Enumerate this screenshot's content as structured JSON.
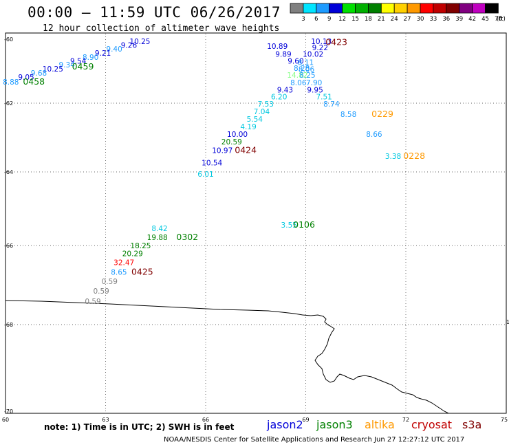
{
  "header": {
    "title": "00:00 — 11:59 UTC 06/26/2017",
    "subtitle": "12 hour collection of altimeter wave heights"
  },
  "scale": {
    "unit": "(ft)",
    "stops": [
      {
        "label": "3",
        "color": "#808080"
      },
      {
        "label": "6",
        "color": "#00e5ff"
      },
      {
        "label": "9",
        "color": "#1e9bff"
      },
      {
        "label": "12",
        "color": "#0000d8"
      },
      {
        "label": "15",
        "color": "#00e000"
      },
      {
        "label": "18",
        "color": "#00b000"
      },
      {
        "label": "21",
        "color": "#008000"
      },
      {
        "label": "24",
        "color": "#ffff00"
      },
      {
        "label": "27",
        "color": "#ffd000"
      },
      {
        "label": "30",
        "color": "#ff9900"
      },
      {
        "label": "33",
        "color": "#ff0000"
      },
      {
        "label": "36",
        "color": "#c00000"
      },
      {
        "label": "39",
        "color": "#800000"
      },
      {
        "label": "42",
        "color": "#800080"
      },
      {
        "label": "45",
        "color": "#c000c0"
      },
      {
        "label": "70",
        "color": "#000000"
      }
    ]
  },
  "axes": {
    "lat_labels": [
      "-60",
      "-62",
      "-64",
      "-66",
      "-68",
      "-70"
    ],
    "lon_labels": [
      "60",
      "63",
      "66",
      "69",
      "72",
      "75"
    ],
    "right_edge_label": "1"
  },
  "observations": [
    {
      "text": "10.13",
      "lon": 69.47,
      "lat": -60.06,
      "color": "#0000d8"
    },
    {
      "text": "10.89",
      "lon": 68.15,
      "lat": -60.21,
      "color": "#0000d8"
    },
    {
      "text": "9.22",
      "lon": 69.43,
      "lat": -60.26,
      "color": "#0000d8"
    },
    {
      "text": "9.89",
      "lon": 68.33,
      "lat": -60.46,
      "color": "#0000d8"
    },
    {
      "text": "10.02",
      "lon": 69.22,
      "lat": -60.46,
      "color": "#0000d8"
    },
    {
      "text": "9.60",
      "lon": 68.7,
      "lat": -60.68,
      "color": "#0000d8"
    },
    {
      "text": "8.11",
      "lon": 69.0,
      "lat": -60.72,
      "color": "#1e9bff"
    },
    {
      "text": "8.28",
      "lon": 68.88,
      "lat": -60.9,
      "color": "#1e9bff"
    },
    {
      "text": "8.06",
      "lon": 69.02,
      "lat": -60.94,
      "color": "#1e9bff"
    },
    {
      "text": "14.82",
      "lon": 68.75,
      "lat": -61.12,
      "color": "#88ff88"
    },
    {
      "text": "8.25",
      "lon": 69.05,
      "lat": -61.12,
      "color": "#1e9bff"
    },
    {
      "text": "8.06",
      "lon": 68.78,
      "lat": -61.35,
      "color": "#1e9bff"
    },
    {
      "text": "7.90",
      "lon": 69.25,
      "lat": -61.35,
      "color": "#1e9bff"
    },
    {
      "text": "9.43",
      "lon": 68.38,
      "lat": -61.58,
      "color": "#0000d8"
    },
    {
      "text": "9.95",
      "lon": 69.28,
      "lat": -61.58,
      "color": "#0000d8"
    },
    {
      "text": "6.20",
      "lon": 68.2,
      "lat": -61.8,
      "color": "#00c8e0"
    },
    {
      "text": "7.51",
      "lon": 69.55,
      "lat": -61.8,
      "color": "#00c8e0"
    },
    {
      "text": "7.53",
      "lon": 67.8,
      "lat": -62.02,
      "color": "#00c8e0"
    },
    {
      "text": "8.74",
      "lon": 69.77,
      "lat": -62.02,
      "color": "#1e9bff"
    },
    {
      "text": "7.04",
      "lon": 67.68,
      "lat": -62.24,
      "color": "#00c8e0"
    },
    {
      "text": "8.58",
      "lon": 70.28,
      "lat": -62.32,
      "color": "#1e9bff"
    },
    {
      "text": "5.54",
      "lon": 67.47,
      "lat": -62.46,
      "color": "#00c8e0"
    },
    {
      "text": "4.19",
      "lon": 67.28,
      "lat": -62.68,
      "color": "#00c8e0"
    },
    {
      "text": "10.00",
      "lon": 66.95,
      "lat": -62.9,
      "color": "#0000d8"
    },
    {
      "text": "8.66",
      "lon": 71.05,
      "lat": -62.9,
      "color": "#1e9bff"
    },
    {
      "text": "20.59",
      "lon": 66.78,
      "lat": -63.12,
      "color": "#008000"
    },
    {
      "text": "10.97",
      "lon": 66.5,
      "lat": -63.37,
      "color": "#0000d8"
    },
    {
      "text": "3.38",
      "lon": 71.62,
      "lat": -63.54,
      "color": "#00c8e0"
    },
    {
      "text": "10.54",
      "lon": 66.19,
      "lat": -63.73,
      "color": "#0000d8"
    },
    {
      "text": "6.01",
      "lon": 66.0,
      "lat": -64.06,
      "color": "#00c8e0"
    },
    {
      "text": "3.55",
      "lon": 68.5,
      "lat": -65.44,
      "color": "#00c8e0"
    },
    {
      "text": "8.42",
      "lon": 64.62,
      "lat": -65.53,
      "color": "#00c8e0"
    },
    {
      "text": "19.88",
      "lon": 64.55,
      "lat": -65.78,
      "color": "#008000"
    },
    {
      "text": "18.25",
      "lon": 64.05,
      "lat": -66.0,
      "color": "#008000"
    },
    {
      "text": "20.29",
      "lon": 63.81,
      "lat": -66.2,
      "color": "#008000"
    },
    {
      "text": "32.47",
      "lon": 63.55,
      "lat": -66.43,
      "color": "#ff0000"
    },
    {
      "text": "8.65",
      "lon": 63.4,
      "lat": -66.67,
      "color": "#1e9bff"
    },
    {
      "text": "0.59",
      "lon": 63.12,
      "lat": -66.9,
      "color": "#808080"
    },
    {
      "text": "0.59",
      "lon": 62.87,
      "lat": -67.15,
      "color": "#808080"
    },
    {
      "text": "0.59",
      "lon": 62.62,
      "lat": -67.41,
      "color": "#808080"
    }
  ],
  "pass_times": [
    {
      "text": "0423",
      "lon": 69.92,
      "lat": -60.1,
      "color": "#800000"
    },
    {
      "text": "0229",
      "lon": 71.3,
      "lat": -62.32,
      "color": "#ff9900"
    },
    {
      "text": "0424",
      "lon": 67.2,
      "lat": -63.37,
      "color": "#800000"
    },
    {
      "text": "0228",
      "lon": 72.25,
      "lat": -63.54,
      "color": "#ff9900"
    },
    {
      "text": "0106",
      "lon": 68.95,
      "lat": -65.44,
      "color": "#008000"
    },
    {
      "text": "0302",
      "lon": 65.45,
      "lat": -65.78,
      "color": "#008000"
    },
    {
      "text": "0425",
      "lon": 64.1,
      "lat": -66.67,
      "color": "#800000"
    },
    {
      "text": "0459",
      "lon": 62.32,
      "lat": -60.86,
      "color": "#008000"
    },
    {
      "text": "0458",
      "lon": 60.85,
      "lat": -61.33,
      "color": "#008000"
    }
  ],
  "clutter": [
    {
      "text": "10.25",
      "lon": 64.03,
      "lat": -60.06,
      "color": "#0000d8"
    },
    {
      "text": "9.26",
      "lon": 63.7,
      "lat": -60.18,
      "color": "#0000d8"
    },
    {
      "text": "9.40",
      "lon": 63.26,
      "lat": -60.3,
      "color": "#1e9bff"
    },
    {
      "text": "9.21",
      "lon": 62.92,
      "lat": -60.43,
      "color": "#0000d8"
    },
    {
      "text": "8.90",
      "lon": 62.55,
      "lat": -60.56,
      "color": "#1e9bff"
    },
    {
      "text": "9.54",
      "lon": 62.18,
      "lat": -60.68,
      "color": "#0000d8"
    },
    {
      "text": "9.34",
      "lon": 61.84,
      "lat": -60.8,
      "color": "#1e9bff"
    },
    {
      "text": "10.25",
      "lon": 61.42,
      "lat": -60.93,
      "color": "#0000d8"
    },
    {
      "text": "9.68",
      "lon": 61.0,
      "lat": -61.05,
      "color": "#1e9bff"
    },
    {
      "text": "9.05",
      "lon": 60.62,
      "lat": -61.18,
      "color": "#0000d8"
    },
    {
      "text": "8.88",
      "lon": 60.16,
      "lat": -61.33,
      "color": "#1e9bff"
    }
  ],
  "legend": {
    "note": "note: 1) Time is in UTC; 2) SWH is in feet",
    "satellites": [
      {
        "name": "jason2",
        "color": "#0000d8"
      },
      {
        "name": "jason3",
        "color": "#008000"
      },
      {
        "name": "altika",
        "color": "#ff9900"
      },
      {
        "name": "cryosat",
        "color": "#c00000"
      },
      {
        "name": "s3a",
        "color": "#800000"
      }
    ]
  },
  "credit": "NOAA/NESDIS Center for Satellite Applications and Research   Jun 27 12:27:12 UTC 2017"
}
